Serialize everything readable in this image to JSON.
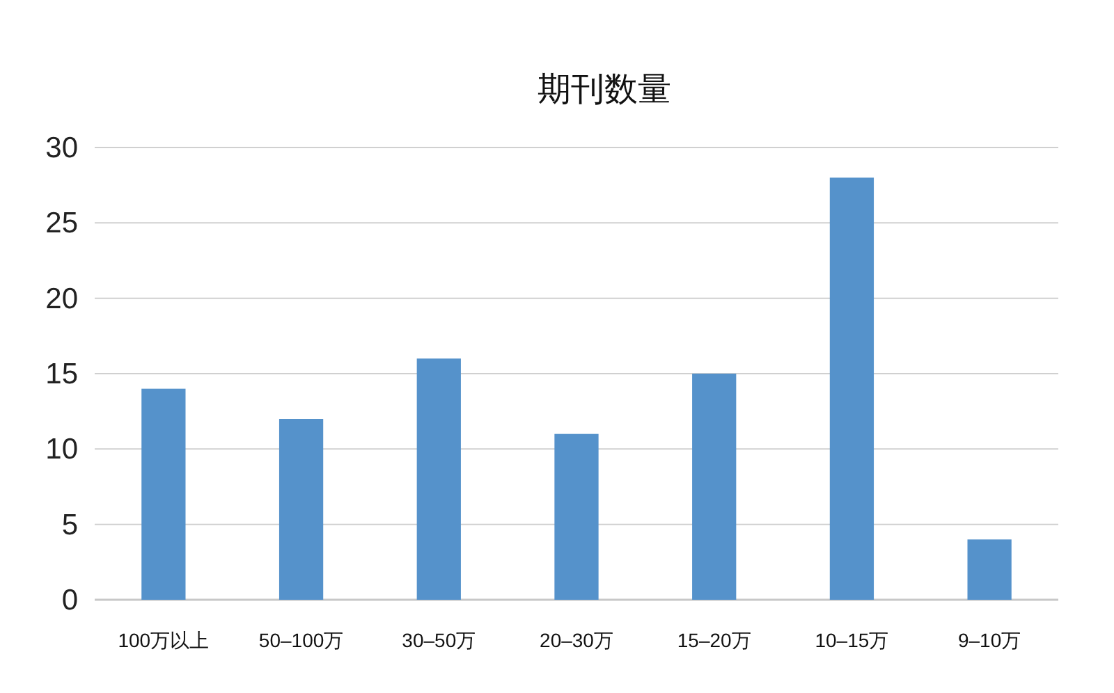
{
  "chart_data": {
    "type": "bar",
    "title": "期刊数量",
    "categories": [
      "100万以上",
      "50–100万",
      "30–50万",
      "20–30万",
      "15–20万",
      "10–15万",
      "9–10万"
    ],
    "values": [
      14,
      12,
      16,
      11,
      15,
      28,
      4
    ],
    "color": "#5592cb",
    "ylim": [
      0,
      30
    ],
    "yticks": [
      0,
      5,
      10,
      15,
      20,
      25,
      30
    ],
    "grid": "y"
  }
}
